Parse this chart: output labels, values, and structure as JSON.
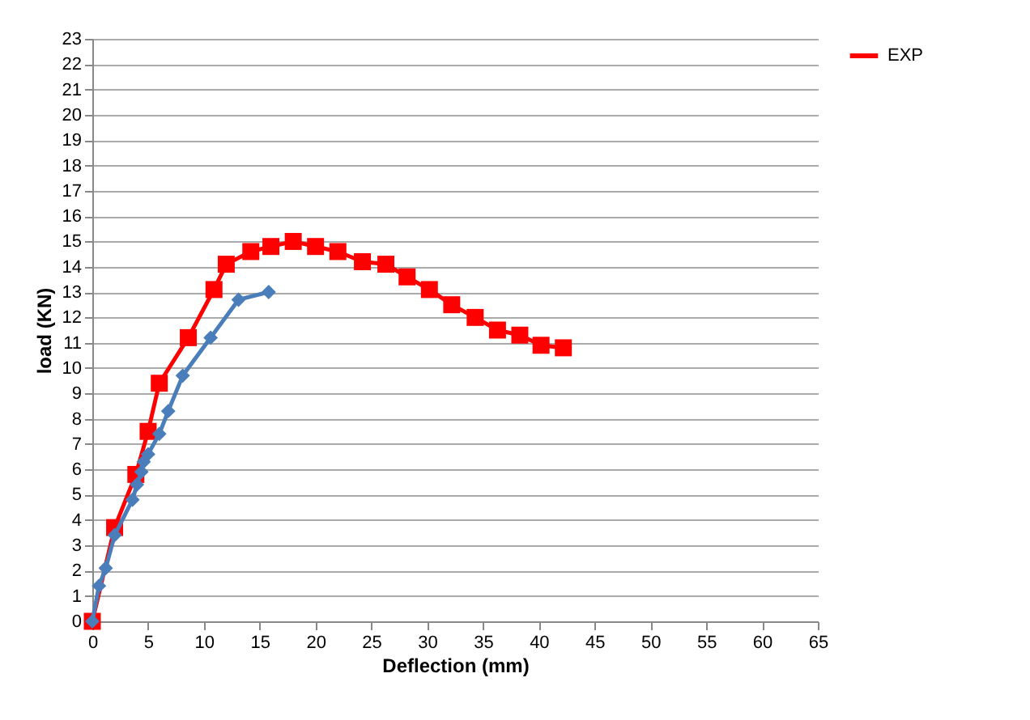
{
  "chart_data": {
    "type": "line",
    "xlabel": "Deflection (mm)",
    "ylabel": "load (KN)",
    "xlim": [
      0,
      65
    ],
    "xticks": [
      0,
      5,
      10,
      15,
      20,
      25,
      30,
      35,
      40,
      45,
      50,
      55,
      60,
      65
    ],
    "ylim": [
      0,
      23
    ],
    "yticks": [
      0,
      1,
      2,
      3,
      4,
      5,
      6,
      7,
      8,
      9,
      10,
      11,
      12,
      13,
      14,
      15,
      16,
      17,
      18,
      19,
      20,
      21,
      22,
      23
    ],
    "grid": "y",
    "legend": "right",
    "series": [
      {
        "name": "EXP",
        "color": "#ff0000",
        "marker": "square",
        "x": [
          0,
          2,
          3.9,
          5,
          6,
          8.6,
          10.9,
          12,
          14.2,
          16,
          18,
          20,
          22,
          24.2,
          26.3,
          28.2,
          30.2,
          32.2,
          34.3,
          36.3,
          38.3,
          40.2,
          42.2
        ],
        "values": [
          0,
          3.7,
          5.8,
          7.5,
          9.4,
          11.2,
          13.1,
          14.1,
          14.6,
          14.8,
          15,
          14.8,
          14.6,
          14.2,
          14.1,
          13.6,
          13.1,
          12.5,
          12,
          11.5,
          11.3,
          10.9,
          10.8
        ]
      },
      {
        "color": "#4a7ebb",
        "marker": "diamond",
        "x": [
          0,
          0.6,
          1.2,
          2,
          3.6,
          4,
          4.4,
          4.6,
          5,
          6,
          6.8,
          8.1,
          10.6,
          13.1,
          15.8
        ],
        "values": [
          0,
          1.4,
          2.1,
          3.4,
          4.8,
          5.4,
          5.9,
          6.3,
          6.6,
          7.4,
          8.3,
          9.7,
          11.2,
          12.7,
          13
        ]
      }
    ]
  }
}
